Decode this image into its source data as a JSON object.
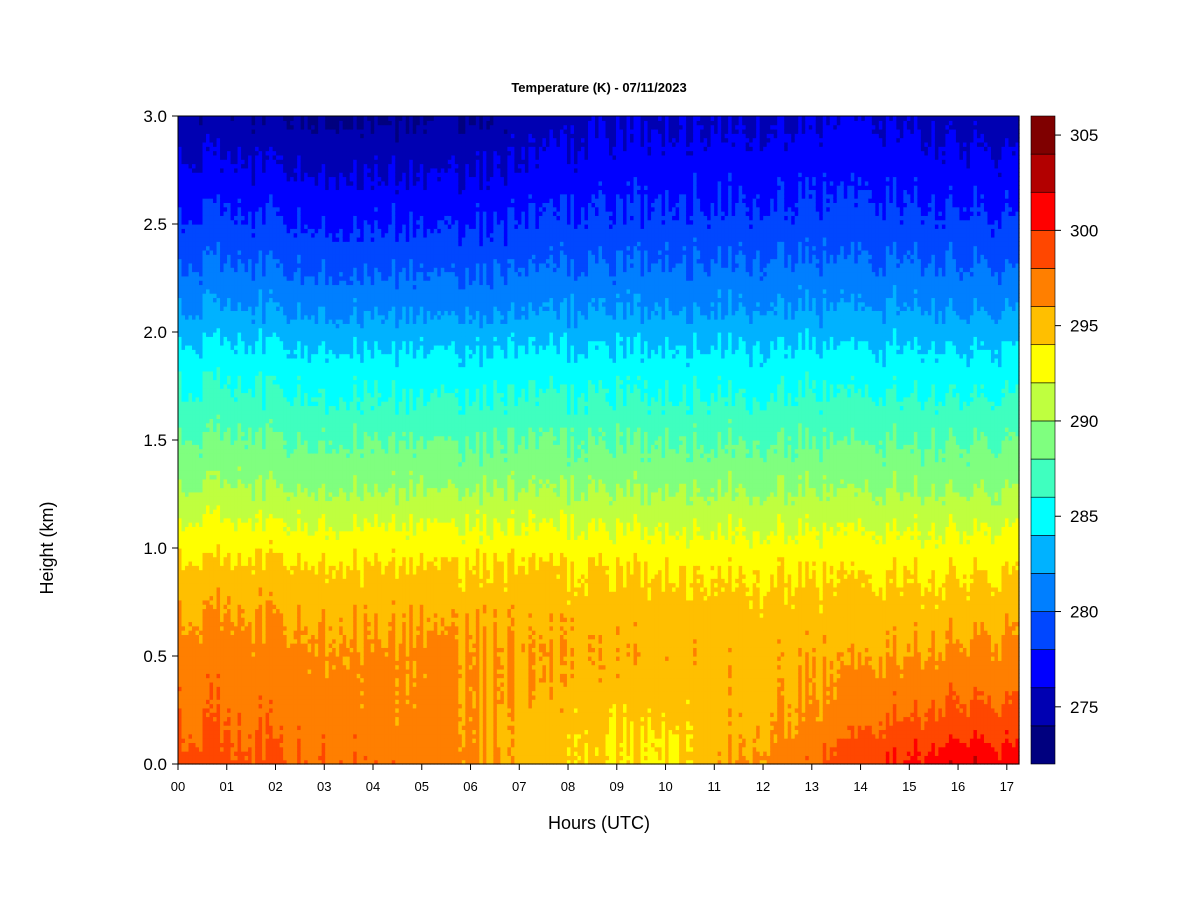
{
  "chart_data": {
    "type": "heatmap",
    "title": "Temperature (K) - 07/11/2023",
    "xlabel": "Hours (UTC)",
    "ylabel": "Height (km)",
    "x_ticks": [
      "00",
      "01",
      "02",
      "03",
      "04",
      "05",
      "06",
      "07",
      "08",
      "09",
      "10",
      "11",
      "12",
      "13",
      "14",
      "15",
      "16",
      "17"
    ],
    "y_ticks": [
      "0.0",
      "0.5",
      "1.0",
      "1.5",
      "2.0",
      "2.5",
      "3.0"
    ],
    "xlim": [
      0,
      17.25
    ],
    "ylim": [
      0,
      3.0
    ],
    "colorbar": {
      "levels": [
        272,
        274,
        276,
        278,
        280,
        282,
        284,
        286,
        288,
        290,
        292,
        294,
        296,
        298,
        300,
        302,
        304,
        306
      ],
      "tick_labels": [
        "275",
        "280",
        "285",
        "290",
        "295",
        "300",
        "305"
      ],
      "tick_values": [
        275,
        280,
        285,
        290,
        295,
        300,
        305
      ],
      "colors": [
        "#00007f",
        "#0000b2",
        "#0000ff",
        "#0047ff",
        "#007fff",
        "#00b2ff",
        "#00ffff",
        "#3fffbf",
        "#7fff7f",
        "#bfff3f",
        "#ffff00",
        "#ffbf00",
        "#ff7f00",
        "#ff4700",
        "#ff0000",
        "#b20000",
        "#7f0000"
      ]
    },
    "temperature_profile": {
      "heights_km": [
        0.0,
        0.05,
        0.15,
        0.3,
        0.5,
        0.7,
        0.9,
        1.1,
        1.3,
        1.5,
        1.7,
        1.9,
        2.1,
        2.3,
        2.5,
        2.7,
        2.9,
        3.0
      ],
      "hours": [
        0,
        1,
        2,
        3,
        4,
        5,
        6,
        7,
        8,
        9,
        10,
        11,
        12,
        13,
        14,
        15,
        16,
        17.25
      ],
      "values_by_hour": [
        [
          299.6,
          299.0,
          298.2,
          297.6,
          297.2,
          296.2,
          294.8,
          292.5,
          290.0,
          288.3,
          286.6,
          284.8,
          282.3,
          280.3,
          278.6,
          277.0,
          275.6,
          274.8
        ],
        [
          298.8,
          298.2,
          297.8,
          297.5,
          297.0,
          296.0,
          294.6,
          292.4,
          289.9,
          288.2,
          286.4,
          284.6,
          282.2,
          280.2,
          278.4,
          276.8,
          275.2,
          274.4
        ],
        [
          298.4,
          298.0,
          297.6,
          297.2,
          296.8,
          295.9,
          294.5,
          292.3,
          289.8,
          288.1,
          286.3,
          284.5,
          282.0,
          280.0,
          278.2,
          276.6,
          275.0,
          274.2
        ],
        [
          298.2,
          297.8,
          297.4,
          297.0,
          296.6,
          295.8,
          294.4,
          292.2,
          289.7,
          288.0,
          286.2,
          284.4,
          281.8,
          279.8,
          278.0,
          276.4,
          274.8,
          274.0
        ],
        [
          297.8,
          297.4,
          297.0,
          296.8,
          296.4,
          295.7,
          294.4,
          292.2,
          289.7,
          288.0,
          286.1,
          284.3,
          281.7,
          279.7,
          277.9,
          276.3,
          274.7,
          273.9
        ],
        [
          297.2,
          297.0,
          296.8,
          296.6,
          296.4,
          295.6,
          294.3,
          292.1,
          289.6,
          287.9,
          286.0,
          284.2,
          281.6,
          279.6,
          277.8,
          276.2,
          274.6,
          273.8
        ],
        [
          296.8,
          296.6,
          296.4,
          296.4,
          296.3,
          295.6,
          294.3,
          292.1,
          289.6,
          287.9,
          286.0,
          284.2,
          281.6,
          279.6,
          277.9,
          276.3,
          274.8,
          274.0
        ],
        [
          295.4,
          295.2,
          295.2,
          295.6,
          295.8,
          295.3,
          294.2,
          292.0,
          289.6,
          287.9,
          286.0,
          284.2,
          281.7,
          279.8,
          278.1,
          276.6,
          275.2,
          274.6
        ],
        [
          294.6,
          294.6,
          294.6,
          295.2,
          295.6,
          295.2,
          294.1,
          292.0,
          289.6,
          287.9,
          286.1,
          284.3,
          281.9,
          280.0,
          278.4,
          277.0,
          275.8,
          275.2
        ],
        [
          293.6,
          293.6,
          294.0,
          294.8,
          295.4,
          295.1,
          294.0,
          291.9,
          289.6,
          287.9,
          286.1,
          284.4,
          282.0,
          280.2,
          278.6,
          277.3,
          276.2,
          275.6
        ],
        [
          293.8,
          293.8,
          294.2,
          294.9,
          295.4,
          295.1,
          294.0,
          291.9,
          289.6,
          287.9,
          286.1,
          284.4,
          282.1,
          280.3,
          278.7,
          277.4,
          276.3,
          275.8
        ],
        [
          295.6,
          295.4,
          295.0,
          295.0,
          295.2,
          294.9,
          293.9,
          291.8,
          289.6,
          287.9,
          286.1,
          284.4,
          282.1,
          280.3,
          278.7,
          277.4,
          276.3,
          275.8
        ],
        [
          296.6,
          296.4,
          296.0,
          295.6,
          295.4,
          294.8,
          293.8,
          291.8,
          289.6,
          287.9,
          286.1,
          284.4,
          282.1,
          280.3,
          278.7,
          277.4,
          276.3,
          275.8
        ],
        [
          297.4,
          297.2,
          296.6,
          296.0,
          295.5,
          294.8,
          293.8,
          291.8,
          289.6,
          287.9,
          286.1,
          284.4,
          282.1,
          280.3,
          278.7,
          277.5,
          276.4,
          275.9
        ],
        [
          299.4,
          299.0,
          298.0,
          296.8,
          295.8,
          294.8,
          293.8,
          291.8,
          289.6,
          287.9,
          286.1,
          284.4,
          282.2,
          280.4,
          278.8,
          277.6,
          276.6,
          276.0
        ],
        [
          300.4,
          300.0,
          298.8,
          297.4,
          296.2,
          295.0,
          293.8,
          291.8,
          289.6,
          287.9,
          286.1,
          284.4,
          282.2,
          280.4,
          278.8,
          277.5,
          276.4,
          275.8
        ],
        [
          302.2,
          301.0,
          299.6,
          298.0,
          296.6,
          295.2,
          293.9,
          291.9,
          289.6,
          287.9,
          286.1,
          284.3,
          282.0,
          280.2,
          278.6,
          277.2,
          276.0,
          275.4
        ],
        [
          301.0,
          300.4,
          299.4,
          298.0,
          296.8,
          295.4,
          294.0,
          292.0,
          289.7,
          288.0,
          286.2,
          284.4,
          282.0,
          280.0,
          278.3,
          276.9,
          275.6,
          275.0
        ]
      ]
    }
  }
}
